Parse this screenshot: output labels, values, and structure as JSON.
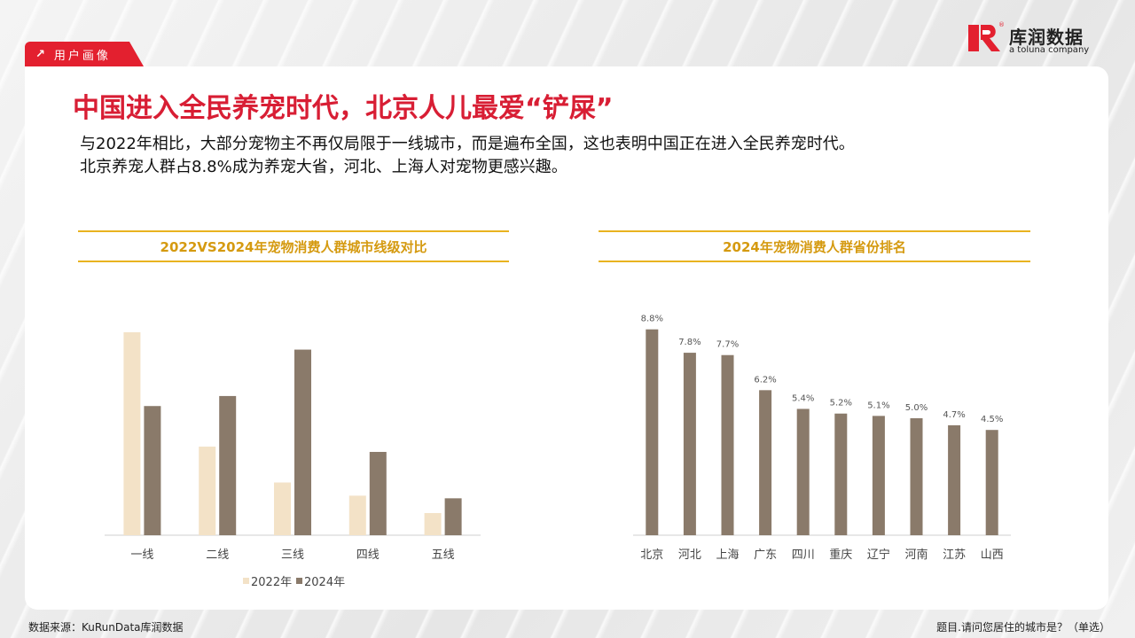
{
  "header": {
    "tag_label": "用户画像",
    "logo_brand": "库润数据",
    "logo_sub": "a toluna company"
  },
  "title": "中国进入全民养宠时代，北京人儿最爱“铲屎”",
  "description": [
    "与2022年相比，大部分宠物主不再仅局限于一线城市，而是遍布全国，这也表明中国正在进入全民养宠时代。",
    "北京养宠人群占8.8%成为养宠大省，河北、上海人对宠物更感兴趣。"
  ],
  "footer": {
    "source": "数据来源：KuRunData库润数据",
    "question": "题目.请问您居住的城市是？（单选）"
  },
  "colors": {
    "accent_red": "#e3202f",
    "title_red": "#d81e34",
    "gold": "#e9b31f",
    "series_2022": "#f3e2c7",
    "series_2024": "#8a7a6a"
  },
  "chart_data": [
    {
      "type": "bar",
      "title": "2022VS2024年宠物消费人群城市线级对比",
      "categories": [
        "一线",
        "二线",
        "三线",
        "四线",
        "五线"
      ],
      "series": [
        {
          "name": "2022年",
          "values": [
            38.5,
            16.8,
            10.0,
            7.5,
            4.2
          ]
        },
        {
          "name": "2024年",
          "values": [
            24.5,
            26.4,
            35.2,
            15.8,
            7.0
          ]
        }
      ],
      "ylim": [
        0,
        40
      ],
      "legend": "bottom",
      "grid": false
    },
    {
      "type": "bar",
      "title": "2024年宠物消费人群省份排名",
      "categories": [
        "北京",
        "河北",
        "上海",
        "广东",
        "四川",
        "重庆",
        "辽宁",
        "河南",
        "江苏",
        "山西"
      ],
      "values": [
        8.8,
        7.8,
        7.7,
        6.2,
        5.4,
        5.2,
        5.1,
        5.0,
        4.7,
        4.5
      ],
      "data_labels": [
        "8.8%",
        "7.8%",
        "7.7%",
        "6.2%",
        "5.4%",
        "5.2%",
        "5.1%",
        "5.0%",
        "4.7%",
        "4.5%"
      ],
      "ylim": [
        0,
        10
      ],
      "grid": false
    }
  ]
}
